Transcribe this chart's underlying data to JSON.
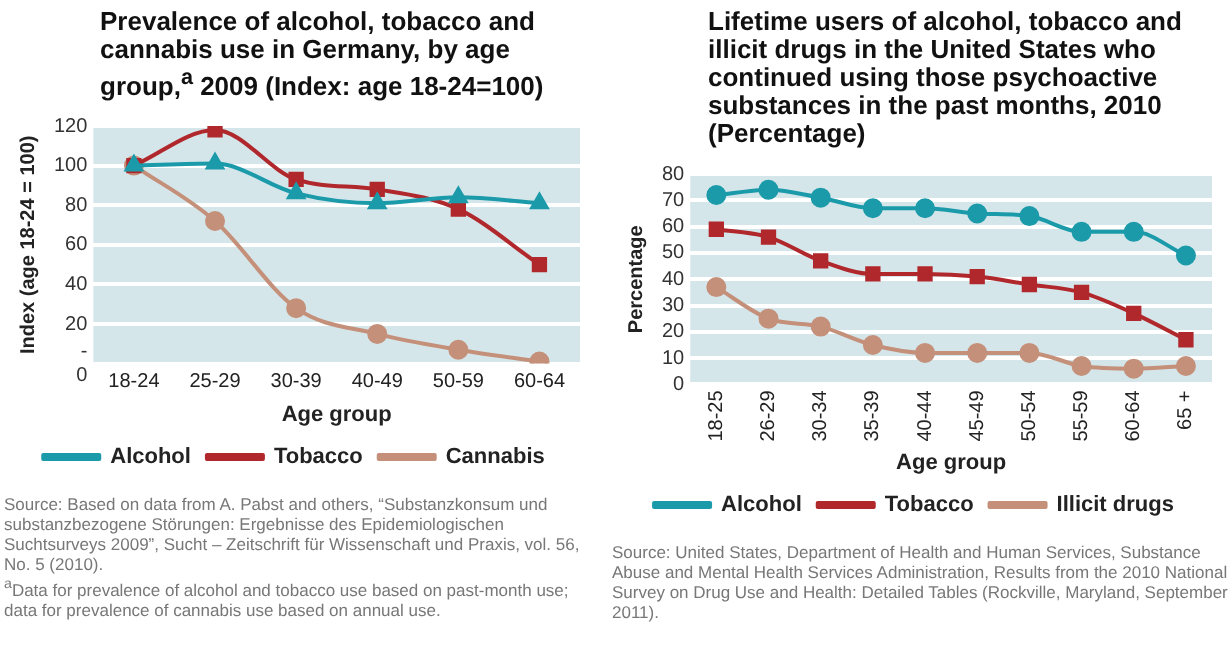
{
  "chart_data": [
    {
      "type": "line",
      "title": "Prevalence of alcohol, tobacco and cannabis use in Germany, by age group,$^{a}$ 2009 (Index: age 18-24=100)",
      "categories": [
        "18-24",
        "25-29",
        "30-39",
        "40-49",
        "50-59",
        "60-64"
      ],
      "xlabel": "Age group",
      "ylabel": "Index (age 18-24 = 100)",
      "ylim": [
        0,
        120
      ],
      "yticks": [
        {
          "value": 0,
          "label": "-\n0"
        },
        20,
        40,
        60,
        80,
        100,
        120
      ],
      "grid": "y",
      "legend": "bottom",
      "series": [
        {
          "name": "Alcohol",
          "color": "#1b9aaa",
          "marker": "triangle",
          "values": [
            100,
            101,
            86,
            81,
            84,
            81
          ]
        },
        {
          "name": "Tobacco",
          "color": "#b0282c",
          "marker": "square",
          "values": [
            100,
            118,
            93,
            88,
            78,
            50
          ]
        },
        {
          "name": "Cannabis",
          "color": "#c4907a",
          "marker": "circle",
          "values": [
            100,
            72,
            28,
            15,
            7,
            1
          ]
        }
      ],
      "annotations": [
        "Source: Based on data from A. Pabst and others, “Substanzkonsum und substanzbezogene Störungen: Ergebnisse des Epidemiologischen Suchtsurveys 2009”, Sucht – Zeitschrift für Wissenschaft und Praxis, vol. 56, No. 5 (2010).",
        "$^{a}$Data for prevalence of alcohol and tobacco use based on past-month use; data for prevalence of cannabis use based on annual use."
      ]
    },
    {
      "type": "line",
      "title": "Lifetime users of alcohol, tobacco and illicit drugs in the United States who continued using those psychoactive substances in the past months, 2010 (Percentage)",
      "categories": [
        "18-25",
        "26-29",
        "30-34",
        "35-39",
        "40-44",
        "45-49",
        "50-54",
        "55-59",
        "60-64",
        "65 +"
      ],
      "xlabel": "Age group",
      "ylabel": "Percentage",
      "ylim": [
        0,
        80
      ],
      "yticks": [
        0,
        10,
        20,
        30,
        40,
        50,
        60,
        70,
        80
      ],
      "grid": "y",
      "legend": "bottom",
      "series": [
        {
          "name": "Alcohol",
          "color": "#1b9aaa",
          "marker": "circle",
          "values": [
            72,
            74,
            71,
            67,
            67,
            65,
            64,
            58,
            58,
            49
          ]
        },
        {
          "name": "Tobacco",
          "color": "#b0282c",
          "marker": "square",
          "values": [
            59,
            56,
            47,
            42,
            42,
            41,
            38,
            35,
            27,
            17
          ]
        },
        {
          "name": "Illicit drugs",
          "color": "#c4907a",
          "marker": "circle",
          "values": [
            37,
            25,
            22,
            15,
            12,
            12,
            12,
            7,
            6,
            7
          ]
        }
      ],
      "annotations": [
        "Source: United States, Department of Health and Human Services, Substance Abuse and Mental Health Services Administration, Results from the 2010 National Survey on Drug Use and Health: Detailed Tables (Rockville, Maryland, September 2011)."
      ]
    }
  ]
}
